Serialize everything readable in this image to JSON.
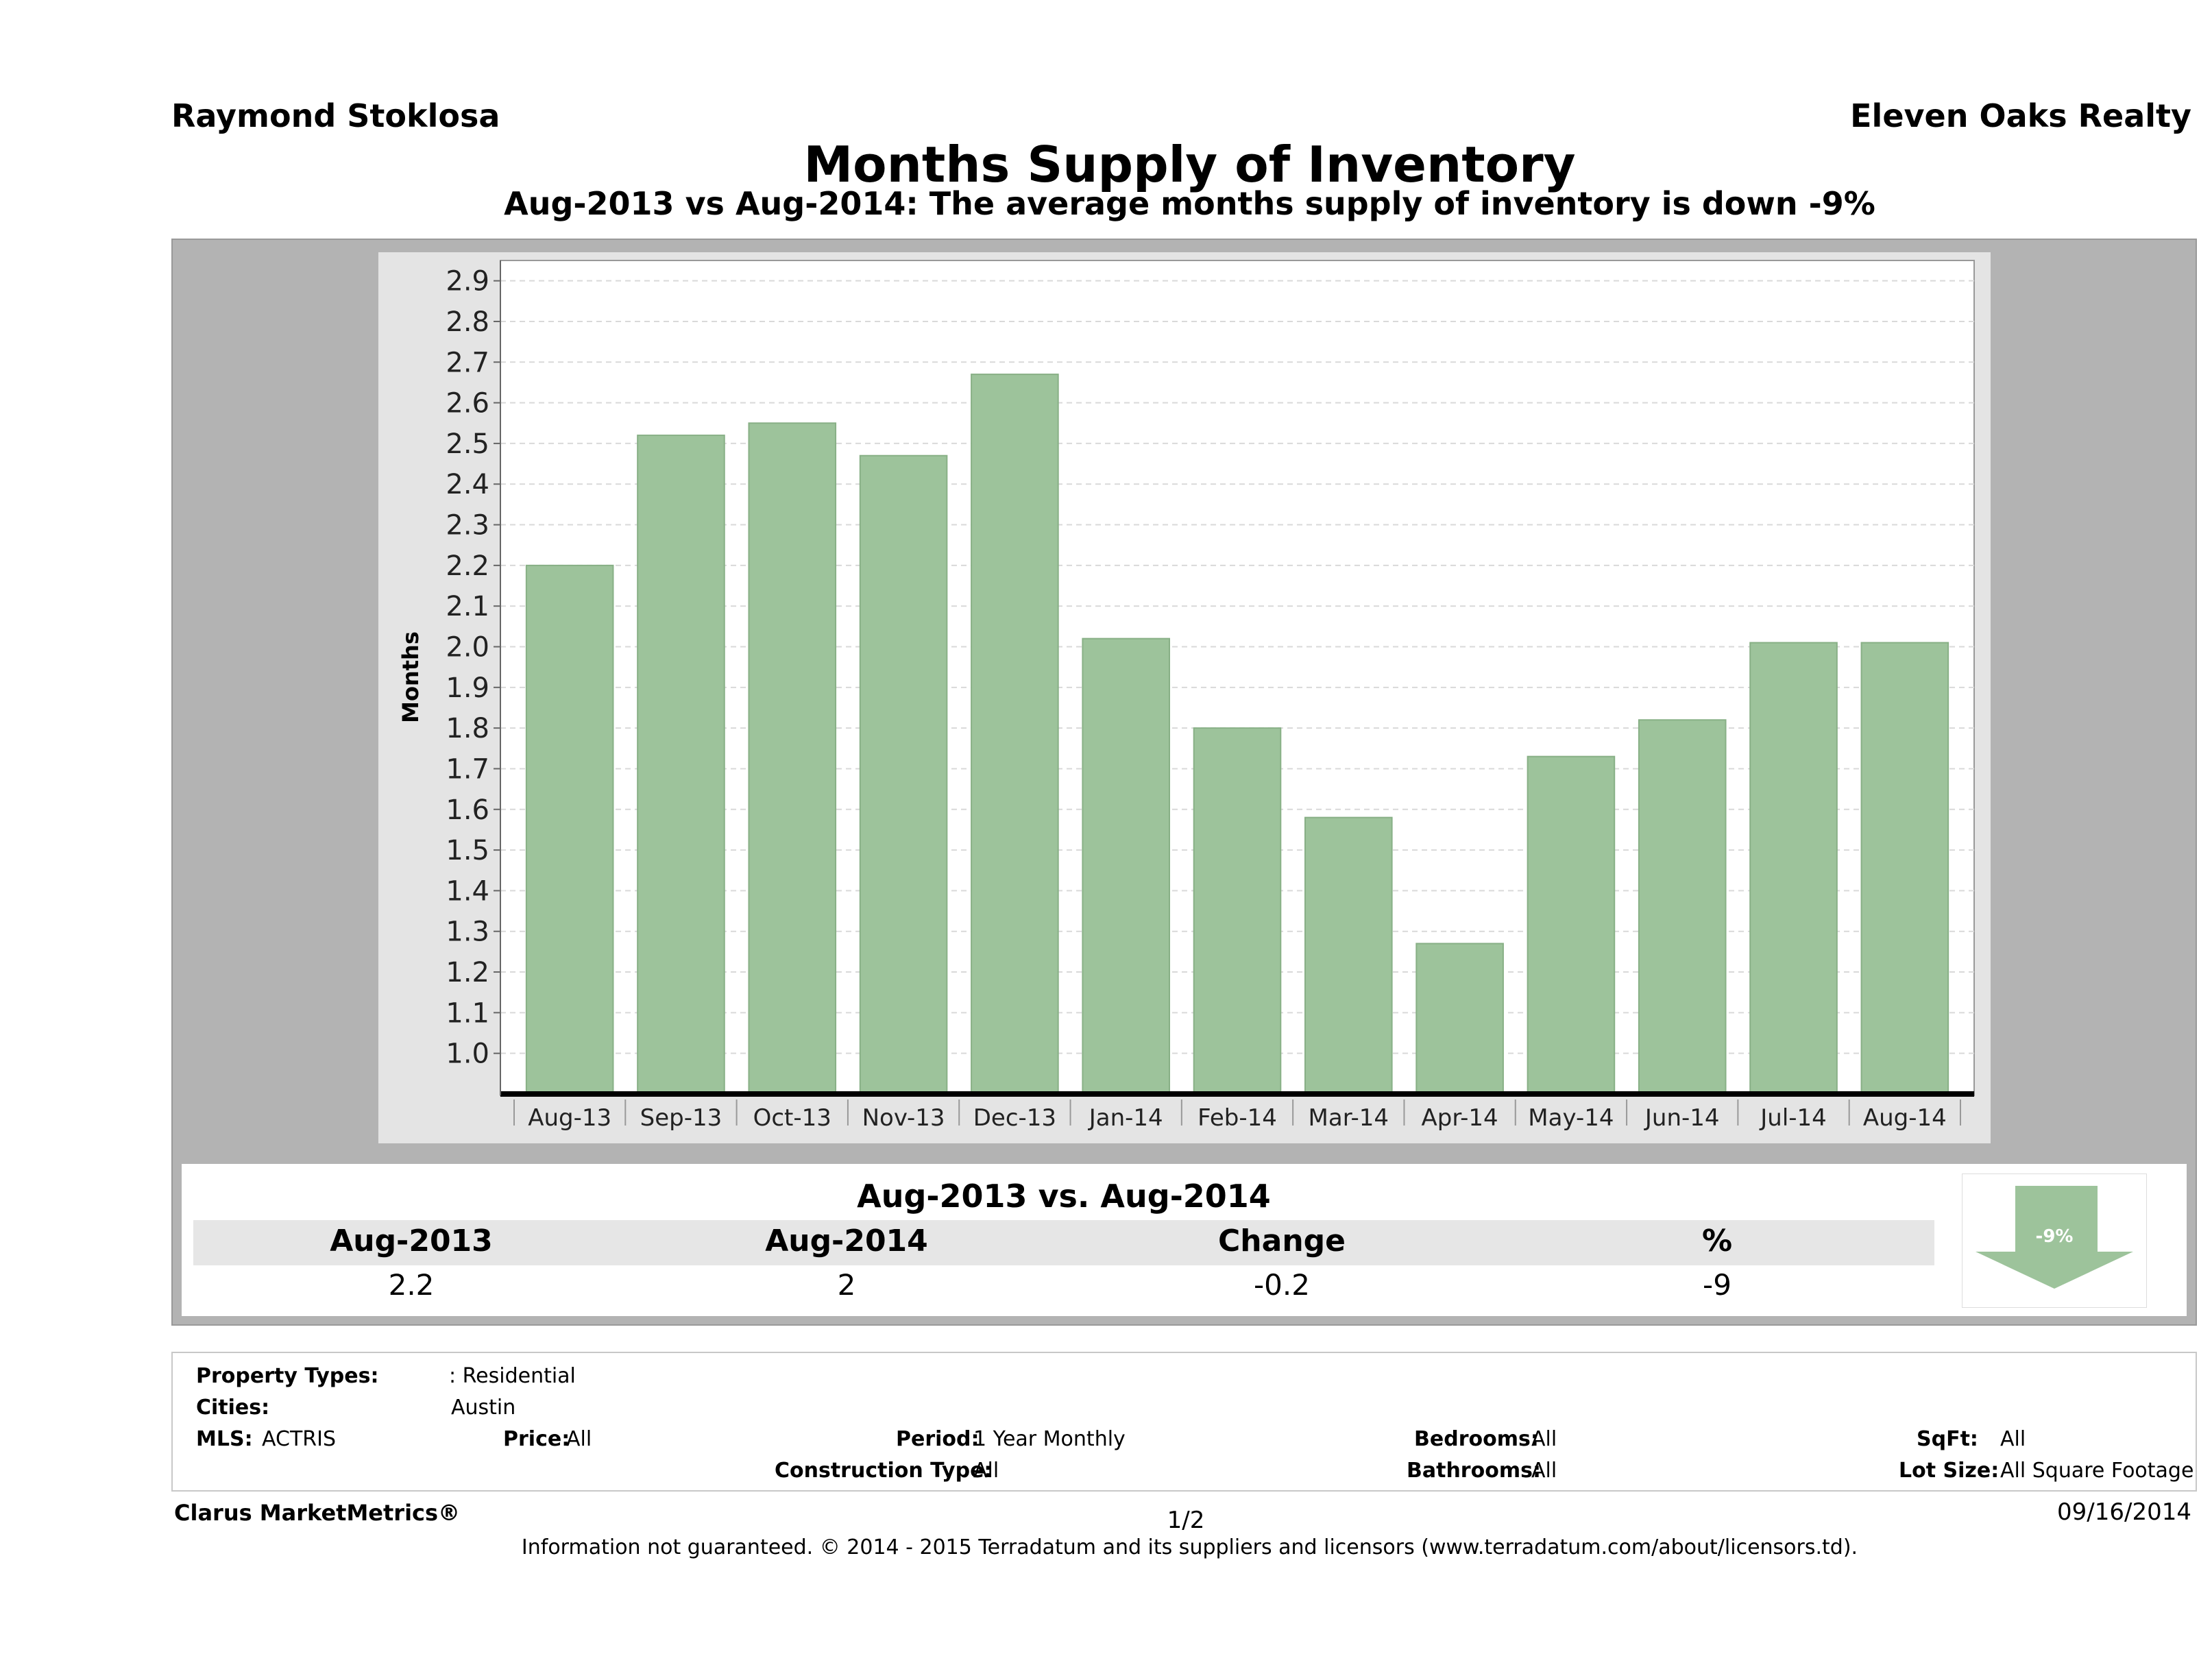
{
  "header": {
    "agent_name": "Raymond Stoklosa",
    "company": "Eleven Oaks Realty",
    "title": "Months Supply of Inventory",
    "subtitle": "Aug-2013 vs Aug-2014: The average months supply of inventory is down -9%"
  },
  "chart_data": {
    "type": "bar",
    "categories": [
      "Aug-13",
      "Sep-13",
      "Oct-13",
      "Nov-13",
      "Dec-13",
      "Jan-14",
      "Feb-14",
      "Mar-14",
      "Apr-14",
      "May-14",
      "Jun-14",
      "Jul-14",
      "Aug-14"
    ],
    "values": [
      2.2,
      2.52,
      2.55,
      2.47,
      2.67,
      2.02,
      1.8,
      1.58,
      1.27,
      1.73,
      1.82,
      2.01,
      2.01
    ],
    "ylabel": "Months",
    "ylim": [
      0.9,
      2.95
    ],
    "yticks": [
      "1.0",
      "1.1",
      "1.2",
      "1.3",
      "1.4",
      "1.5",
      "1.6",
      "1.7",
      "1.8",
      "1.9",
      "2.0",
      "2.1",
      "2.2",
      "2.3",
      "2.4",
      "2.5",
      "2.6",
      "2.7",
      "2.8",
      "2.9"
    ],
    "bar_color": "#9dc39b",
    "grid": true
  },
  "summary": {
    "title": "Aug-2013 vs. Aug-2014",
    "headers": [
      "Aug-2013",
      "Aug-2014",
      "Change",
      "%"
    ],
    "values": [
      "2.2",
      "2",
      "-0.2",
      "-9"
    ],
    "badge": "-9%",
    "badge_color": "#9dc39b"
  },
  "info": {
    "property_types_label": "Property Types:",
    "property_types": ": Residential",
    "cities_label": "Cities:",
    "cities": "Austin",
    "mls_label": "MLS:",
    "mls": "ACTRIS",
    "price_label": "Price:",
    "price": "All",
    "period_label": "Period:",
    "period": "1 Year Monthly",
    "construction_label": "Construction Type:",
    "construction": "All",
    "bedrooms_label": "Bedrooms:",
    "bedrooms": "All",
    "bathrooms_label": "Bathrooms:",
    "bathrooms": "All",
    "sqft_label": "SqFt:",
    "sqft": "All",
    "lot_label": "Lot Size:",
    "lot": "All Square Footage"
  },
  "footer": {
    "brand": "Clarus MarketMetrics®",
    "page": "1/2",
    "date": "09/16/2014",
    "disclaimer": "Information not guaranteed. © 2014 - 2015 Terradatum and its suppliers and licensors (www.terradatum.com/about/licensors.td)."
  }
}
